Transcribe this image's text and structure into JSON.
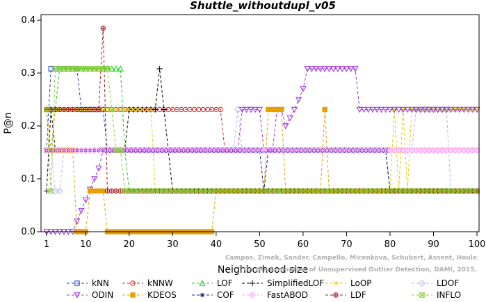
{
  "chart_data": {
    "type": "line",
    "title": "Shuttle_withoutdupl_v05",
    "xlabel": "Neighborhood size",
    "ylabel": "P@n",
    "xlim": [
      1,
      100
    ],
    "ylim": [
      0,
      0.4
    ],
    "xticks": [
      1,
      10,
      20,
      30,
      40,
      50,
      60,
      70,
      80,
      90,
      100
    ],
    "yticks": [
      0.0,
      0.1,
      0.2,
      0.3,
      0.4
    ],
    "ytick_labels": [
      "0.0",
      "0.1",
      "0.2",
      "0.3",
      "0.4"
    ],
    "credit": [
      "Campos, Zimek, Sander, Campello, Micenkova, Schubert, Assent, Houle",
      "On the Evaluation of Unsupervised Outlier Detection, DAMI, 2015."
    ],
    "legend_placement": "bottom",
    "series": [
      {
        "name": "kNN",
        "color": "#1f3fd0",
        "marker": "square",
        "points": [
          [
            1,
            0.154
          ],
          [
            2,
            0.308
          ],
          [
            3,
            0.308
          ],
          [
            4,
            0.308
          ],
          [
            5,
            0.308
          ],
          [
            6,
            0.308
          ],
          [
            7,
            0.308
          ],
          [
            8,
            0.308
          ],
          [
            9,
            0.231
          ],
          [
            10,
            0.231
          ],
          [
            11,
            0.231
          ],
          [
            12,
            0.231
          ],
          [
            13,
            0.231
          ],
          [
            14,
            0.231
          ],
          [
            15,
            0.154
          ],
          [
            20,
            0.154
          ],
          [
            30,
            0.154
          ],
          [
            40,
            0.154
          ],
          [
            50,
            0.154
          ],
          [
            60,
            0.154
          ],
          [
            70,
            0.154
          ],
          [
            79,
            0.154
          ],
          [
            80,
            0.077
          ],
          [
            90,
            0.077
          ],
          [
            100,
            0.077
          ]
        ]
      },
      {
        "name": "kNNW",
        "color": "#d42020",
        "marker": "circle",
        "points": [
          [
            1,
            0.154
          ],
          [
            2,
            0.154
          ],
          [
            3,
            0.231
          ],
          [
            5,
            0.231
          ],
          [
            10,
            0.231
          ],
          [
            20,
            0.231
          ],
          [
            30,
            0.231
          ],
          [
            41,
            0.231
          ],
          [
            42,
            0.154
          ],
          [
            50,
            0.154
          ],
          [
            60,
            0.154
          ],
          [
            70,
            0.154
          ],
          [
            80,
            0.154
          ],
          [
            90,
            0.154
          ],
          [
            100,
            0.154
          ]
        ]
      },
      {
        "name": "LOF",
        "color": "#22cc22",
        "marker": "triangle-up",
        "points": [
          [
            1,
            0.231
          ],
          [
            2,
            0.231
          ],
          [
            3,
            0.231
          ],
          [
            4,
            0.308
          ],
          [
            6,
            0.308
          ],
          [
            10,
            0.308
          ],
          [
            14,
            0.308
          ],
          [
            18,
            0.308
          ],
          [
            19,
            0.154
          ],
          [
            20,
            0.077
          ],
          [
            30,
            0.077
          ],
          [
            40,
            0.077
          ],
          [
            50,
            0.077
          ],
          [
            60,
            0.077
          ],
          [
            70,
            0.077
          ],
          [
            80,
            0.077
          ],
          [
            90,
            0.077
          ],
          [
            100,
            0.077
          ]
        ]
      },
      {
        "name": "SimplifiedLOF",
        "color": "#000000",
        "marker": "plus",
        "points": [
          [
            1,
            0.077
          ],
          [
            2,
            0.231
          ],
          [
            3,
            0.154
          ],
          [
            4,
            0.154
          ],
          [
            10,
            0.154
          ],
          [
            20,
            0.231
          ],
          [
            25,
            0.231
          ],
          [
            26,
            0.231
          ],
          [
            27,
            0.308
          ],
          [
            28,
            0.231
          ],
          [
            29,
            0.154
          ],
          [
            30,
            0.077
          ],
          [
            40,
            0.077
          ],
          [
            50,
            0.077
          ],
          [
            60,
            0.077
          ],
          [
            70,
            0.077
          ],
          [
            80,
            0.077
          ],
          [
            90,
            0.077
          ],
          [
            100,
            0.077
          ]
        ]
      },
      {
        "name": "LoOP",
        "color": "#e0d000",
        "marker": "cross",
        "points": [
          [
            1,
            0.154
          ],
          [
            2,
            0.154
          ],
          [
            3,
            0.231
          ],
          [
            5,
            0.231
          ],
          [
            10,
            0.231
          ],
          [
            20,
            0.231
          ],
          [
            25,
            0.231
          ],
          [
            26,
            0.077
          ],
          [
            30,
            0.077
          ],
          [
            40,
            0.077
          ],
          [
            50,
            0.077
          ],
          [
            60,
            0.077
          ],
          [
            70,
            0.077
          ],
          [
            80,
            0.077
          ],
          [
            81,
            0.231
          ],
          [
            82,
            0.077
          ],
          [
            83,
            0.231
          ],
          [
            84,
            0.077
          ],
          [
            85,
            0.231
          ],
          [
            90,
            0.231
          ],
          [
            100,
            0.231
          ]
        ]
      },
      {
        "name": "LDOF",
        "color": "#b8b8ee",
        "marker": "diamond",
        "points": [
          [
            1,
            0.154
          ],
          [
            2,
            0.154
          ],
          [
            3,
            0.077
          ],
          [
            4,
            0.077
          ],
          [
            5,
            0.154
          ],
          [
            10,
            0.154
          ],
          [
            20,
            0.154
          ],
          [
            30,
            0.154
          ],
          [
            40,
            0.154
          ],
          [
            44,
            0.154
          ],
          [
            45,
            0.231
          ],
          [
            46,
            0.154
          ],
          [
            50,
            0.154
          ],
          [
            60,
            0.154
          ],
          [
            70,
            0.154
          ],
          [
            80,
            0.154
          ],
          [
            85,
            0.154
          ],
          [
            86,
            0.231
          ],
          [
            90,
            0.231
          ],
          [
            93,
            0.231
          ],
          [
            94,
            0.077
          ],
          [
            100,
            0.077
          ]
        ]
      },
      {
        "name": "ODIN",
        "color": "#9933dd",
        "marker": "triangle-down",
        "points": [
          [
            1,
            0.0
          ],
          [
            2,
            0.0
          ],
          [
            3,
            0.0
          ],
          [
            4,
            0.0
          ],
          [
            5,
            0.0
          ],
          [
            6,
            0.0
          ],
          [
            7,
            0.0
          ],
          [
            8,
            0.02
          ],
          [
            9,
            0.04
          ],
          [
            10,
            0.06
          ],
          [
            11,
            0.08
          ],
          [
            12,
            0.1
          ],
          [
            13,
            0.12
          ],
          [
            14,
            0.154
          ],
          [
            20,
            0.154
          ],
          [
            30,
            0.154
          ],
          [
            40,
            0.154
          ],
          [
            45,
            0.154
          ],
          [
            46,
            0.231
          ],
          [
            50,
            0.231
          ],
          [
            51,
            0.154
          ],
          [
            53,
            0.154
          ],
          [
            54,
            0.231
          ],
          [
            55,
            0.231
          ],
          [
            56,
            0.2
          ],
          [
            57,
            0.215
          ],
          [
            58,
            0.231
          ],
          [
            59,
            0.25
          ],
          [
            60,
            0.27
          ],
          [
            61,
            0.308
          ],
          [
            65,
            0.308
          ],
          [
            70,
            0.308
          ],
          [
            72,
            0.308
          ],
          [
            73,
            0.231
          ],
          [
            80,
            0.231
          ],
          [
            85,
            0.231
          ],
          [
            86,
            0.231
          ],
          [
            90,
            0.231
          ],
          [
            100,
            0.231
          ]
        ]
      },
      {
        "name": "KDEOS",
        "color": "#e8a000",
        "marker": "square-filled",
        "points": [
          [
            1,
            0.231
          ],
          [
            2,
            0.154
          ],
          [
            3,
            0.154
          ],
          [
            8,
            0.0
          ],
          [
            10,
            0.0
          ],
          [
            11,
            0.077
          ],
          [
            14,
            0.077
          ],
          [
            15,
            0.0
          ],
          [
            20,
            0.0
          ],
          [
            30,
            0.0
          ],
          [
            39,
            0.0
          ],
          [
            40,
            0.077
          ],
          [
            50,
            0.077
          ],
          [
            52,
            0.231
          ],
          [
            55,
            0.231
          ],
          [
            56,
            0.077
          ],
          [
            60,
            0.077
          ],
          [
            64,
            0.077
          ],
          [
            65,
            0.231
          ],
          [
            66,
            0.077
          ],
          [
            70,
            0.077
          ],
          [
            80,
            0.077
          ],
          [
            90,
            0.077
          ],
          [
            100,
            0.077
          ]
        ]
      },
      {
        "name": "COF",
        "color": "#102080",
        "marker": "asterisk",
        "points": [
          [
            1,
            0.154
          ],
          [
            2,
            0.154
          ],
          [
            3,
            0.154
          ],
          [
            10,
            0.154
          ],
          [
            20,
            0.154
          ],
          [
            30,
            0.154
          ],
          [
            40,
            0.154
          ],
          [
            50,
            0.154
          ],
          [
            51,
            0.077
          ],
          [
            52,
            0.154
          ],
          [
            60,
            0.154
          ],
          [
            70,
            0.154
          ],
          [
            79,
            0.154
          ],
          [
            80,
            0.077
          ],
          [
            90,
            0.077
          ],
          [
            100,
            0.077
          ]
        ]
      },
      {
        "name": "FastABOD",
        "color": "#ffaaff",
        "marker": "diamond-plus",
        "points": [
          [
            1,
            0.154
          ],
          [
            2,
            0.154
          ],
          [
            10,
            0.154
          ],
          [
            20,
            0.154
          ],
          [
            30,
            0.154
          ],
          [
            40,
            0.154
          ],
          [
            50,
            0.154
          ],
          [
            60,
            0.154
          ],
          [
            70,
            0.154
          ],
          [
            80,
            0.154
          ],
          [
            90,
            0.154
          ],
          [
            100,
            0.154
          ]
        ]
      },
      {
        "name": "LDF",
        "color": "#a01818",
        "marker": "circle-plus",
        "points": [
          [
            1,
            0.231
          ],
          [
            2,
            0.231
          ],
          [
            3,
            0.231
          ],
          [
            10,
            0.231
          ],
          [
            13,
            0.231
          ],
          [
            14,
            0.385
          ],
          [
            15,
            0.077
          ],
          [
            20,
            0.077
          ],
          [
            30,
            0.077
          ],
          [
            40,
            0.077
          ],
          [
            50,
            0.077
          ],
          [
            60,
            0.077
          ],
          [
            70,
            0.077
          ],
          [
            80,
            0.077
          ],
          [
            90,
            0.077
          ],
          [
            100,
            0.077
          ]
        ]
      },
      {
        "name": "INFLO",
        "color": "#88cc33",
        "marker": "square-x",
        "points": [
          [
            1,
            0.231
          ],
          [
            2,
            0.077
          ],
          [
            3,
            0.308
          ],
          [
            5,
            0.308
          ],
          [
            10,
            0.308
          ],
          [
            15,
            0.308
          ],
          [
            16,
            0.231
          ],
          [
            17,
            0.154
          ],
          [
            18,
            0.154
          ],
          [
            19,
            0.077
          ],
          [
            20,
            0.077
          ],
          [
            30,
            0.077
          ],
          [
            40,
            0.077
          ],
          [
            50,
            0.077
          ],
          [
            60,
            0.077
          ],
          [
            70,
            0.077
          ],
          [
            80,
            0.077
          ],
          [
            90,
            0.077
          ],
          [
            100,
            0.077
          ]
        ]
      }
    ]
  }
}
